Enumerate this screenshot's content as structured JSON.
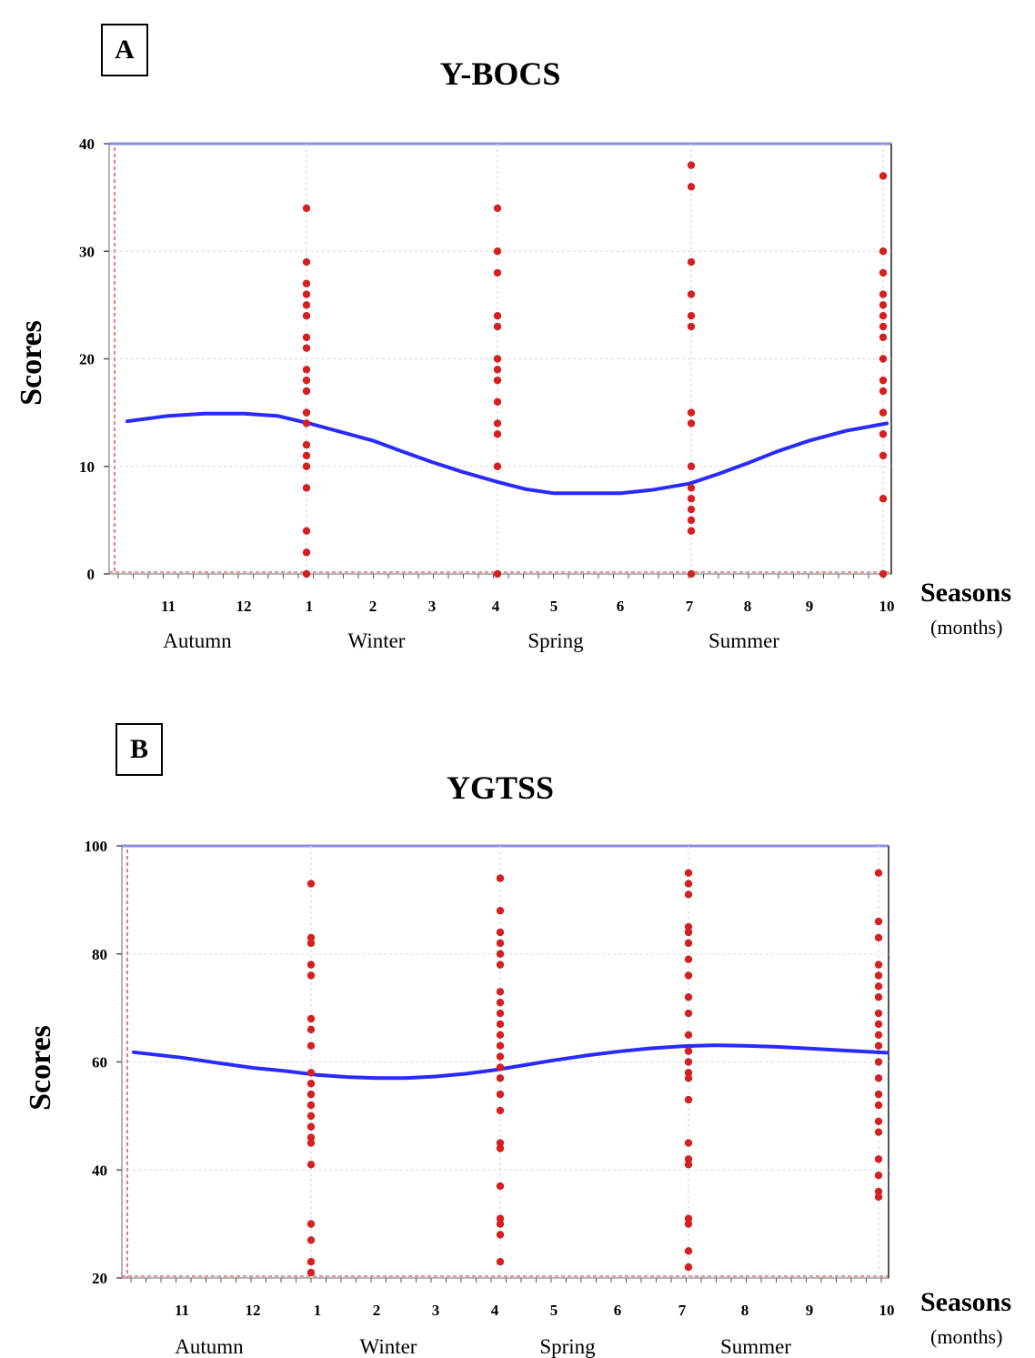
{
  "chart_data": [
    {
      "type": "scatter",
      "panel": "A",
      "title": "Y-BOCS",
      "ylabel": "Scores",
      "xlabel": "Seasons",
      "xlabel_sub": "(months)",
      "ylim": [
        0,
        40
      ],
      "yticks": [
        0,
        10,
        20,
        30,
        40
      ],
      "month_ticks": [
        "11",
        "12",
        "1",
        "2",
        "3",
        "4",
        "5",
        "6",
        "7",
        "8",
        "9",
        "10"
      ],
      "seasons": [
        "Autumn",
        "Winter",
        "Spring",
        "Summer"
      ],
      "grid": true,
      "scatter": [
        {
          "month": "1",
          "values": [
            34,
            29,
            27,
            26,
            25,
            24,
            22,
            21,
            19,
            18,
            17,
            15,
            14,
            12,
            11,
            10,
            8,
            4,
            2,
            0
          ]
        },
        {
          "month": "4",
          "values": [
            34,
            30,
            28,
            24,
            23,
            20,
            19,
            18,
            16,
            14,
            13,
            10,
            0
          ]
        },
        {
          "month": "7",
          "values": [
            38,
            36,
            29,
            26,
            24,
            23,
            15,
            14,
            10,
            8,
            7,
            6,
            5,
            4,
            0
          ]
        },
        {
          "month": "10",
          "values": [
            37,
            30,
            28,
            26,
            25,
            24,
            23,
            22,
            20,
            18,
            17,
            15,
            13,
            11,
            7,
            0
          ]
        }
      ],
      "trend": {
        "months": [
          "10.5",
          "11",
          "11.5",
          "12",
          "12.5",
          "1",
          "1.5",
          "2",
          "2.5",
          "3",
          "3.5",
          "4",
          "4.5",
          "5",
          "5.5",
          "6",
          "6.5",
          "7",
          "7.5",
          "8",
          "8.5",
          "9",
          "9.5",
          "10"
        ],
        "values": [
          14.2,
          14.7,
          14.9,
          14.9,
          14.7,
          14.0,
          13.2,
          12.4,
          11.4,
          10.4,
          9.5,
          8.6,
          7.9,
          7.5,
          7.5,
          7.5,
          7.8,
          8.4,
          9.3,
          10.3,
          11.4,
          12.4,
          13.3,
          14.0
        ]
      }
    },
    {
      "type": "scatter",
      "panel": "B",
      "title": "YGTSS",
      "ylabel": "Scores",
      "xlabel": "Seasons",
      "xlabel_sub": "(months)",
      "ylim": [
        20,
        100
      ],
      "yticks": [
        20,
        40,
        60,
        80,
        100
      ],
      "month_ticks": [
        "11",
        "12",
        "1",
        "2",
        "3",
        "4",
        "5",
        "6",
        "7",
        "8",
        "9",
        "10"
      ],
      "seasons": [
        "Autumn",
        "Winter",
        "Spring",
        "Summer"
      ],
      "grid": true,
      "scatter": [
        {
          "month": "1",
          "values": [
            93,
            83,
            82,
            78,
            76,
            68,
            66,
            63,
            58,
            56,
            54,
            52,
            50,
            48,
            46,
            45,
            41,
            30,
            27,
            23,
            21
          ]
        },
        {
          "month": "4",
          "values": [
            94,
            88,
            84,
            82,
            80,
            78,
            73,
            71,
            69,
            67,
            65,
            63,
            61,
            59,
            57,
            54,
            51,
            45,
            44,
            37,
            31,
            30,
            28,
            23
          ]
        },
        {
          "month": "7",
          "values": [
            95,
            93,
            91,
            85,
            84,
            82,
            79,
            76,
            72,
            69,
            65,
            62,
            60,
            58,
            57,
            53,
            45,
            42,
            41,
            31,
            30,
            25,
            22
          ]
        },
        {
          "month": "10",
          "values": [
            95,
            86,
            83,
            78,
            76,
            74,
            72,
            69,
            67,
            65,
            63,
            60,
            57,
            54,
            52,
            49,
            47,
            42,
            39,
            36,
            35
          ]
        }
      ],
      "trend": {
        "months": [
          "10.5",
          "11",
          "11.5",
          "12",
          "12.5",
          "1",
          "1.5",
          "2",
          "2.5",
          "3",
          "3.5",
          "4",
          "4.5",
          "5",
          "5.5",
          "6",
          "6.5",
          "7",
          "7.5",
          "8",
          "8.5",
          "9",
          "9.5",
          "10"
        ],
        "values": [
          61.8,
          60.8,
          59.8,
          58.9,
          58.3,
          57.6,
          57.2,
          57.0,
          57.0,
          57.3,
          57.8,
          58.5,
          59.4,
          60.3,
          61.2,
          61.9,
          62.5,
          62.9,
          63.1,
          63.0,
          62.8,
          62.5,
          62.1,
          61.7
        ]
      }
    }
  ]
}
